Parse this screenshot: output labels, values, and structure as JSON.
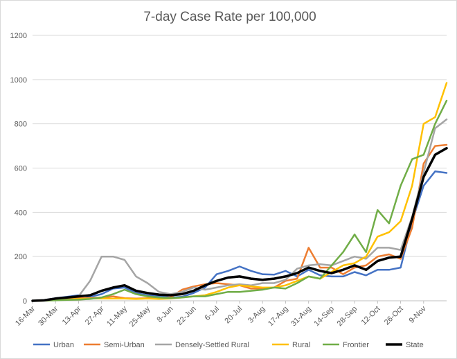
{
  "chart_data": {
    "type": "line",
    "title": "7-day Case Rate per 100,000",
    "xlabel": "",
    "ylabel": "",
    "ylim": [
      0,
      1200
    ],
    "yticks": [
      0,
      200,
      400,
      600,
      800,
      1000,
      1200
    ],
    "grid": true,
    "legend_position": "bottom",
    "x": [
      "16-Mar",
      "23-Mar",
      "30-Mar",
      "6-Apr",
      "13-Apr",
      "20-Apr",
      "27-Apr",
      "4-May",
      "11-May",
      "18-May",
      "25-May",
      "1-Jun",
      "8-Jun",
      "15-Jun",
      "22-Jun",
      "29-Jun",
      "6-Jul",
      "13-Jul",
      "20-Jul",
      "27-Jul",
      "3-Aug",
      "10-Aug",
      "17-Aug",
      "24-Aug",
      "31-Aug",
      "7-Sep",
      "14-Sep",
      "21-Sep",
      "28-Sep",
      "5-Oct",
      "12-Oct",
      "19-Oct",
      "26-Oct",
      "2-Nov",
      "9-Nov",
      "16-Nov",
      "19-Nov"
    ],
    "x_tick_labels": [
      "16-Mar",
      "30-Mar",
      "13-Apr",
      "27-Apr",
      "11-May",
      "25-May",
      "8-Jun",
      "22-Jun",
      "6-Jul",
      "20-Jul",
      "3-Aug",
      "17-Aug",
      "31-Aug",
      "14-Sep",
      "28-Sep",
      "12-Oct",
      "26-Oct",
      "9-Nov"
    ],
    "series": [
      {
        "name": "Urban",
        "color": "#4472c4",
        "width": 2.5,
        "values": [
          0,
          3,
          12,
          18,
          25,
          18,
          30,
          55,
          60,
          35,
          25,
          20,
          15,
          18,
          35,
          60,
          120,
          135,
          155,
          135,
          120,
          118,
          135,
          110,
          140,
          115,
          110,
          110,
          130,
          115,
          140,
          140,
          150,
          360,
          520,
          585,
          578
        ]
      },
      {
        "name": "Semi-Urban",
        "color": "#ed7d31",
        "width": 2.5,
        "values": [
          0,
          1,
          5,
          10,
          12,
          12,
          15,
          20,
          12,
          10,
          12,
          12,
          15,
          50,
          65,
          75,
          80,
          75,
          70,
          55,
          55,
          60,
          90,
          100,
          240,
          150,
          150,
          120,
          150,
          160,
          200,
          210,
          190,
          330,
          620,
          700,
          705
        ]
      },
      {
        "name": "Densely-Settled Rural",
        "color": "#a5a5a5",
        "width": 2.5,
        "values": [
          0,
          2,
          8,
          15,
          20,
          90,
          200,
          200,
          185,
          110,
          80,
          40,
          30,
          40,
          60,
          50,
          60,
          70,
          75,
          70,
          80,
          80,
          95,
          145,
          160,
          165,
          160,
          180,
          200,
          190,
          240,
          240,
          230,
          380,
          580,
          780,
          820
        ]
      },
      {
        "name": "Rural",
        "color": "#ffc000",
        "width": 2.5,
        "values": [
          0,
          1,
          3,
          5,
          8,
          10,
          10,
          10,
          10,
          8,
          10,
          8,
          10,
          15,
          20,
          25,
          40,
          60,
          70,
          65,
          60,
          60,
          70,
          90,
          110,
          100,
          130,
          160,
          170,
          200,
          290,
          310,
          360,
          520,
          800,
          830,
          985
        ]
      },
      {
        "name": "Frontier",
        "color": "#70ad47",
        "width": 2.5,
        "values": [
          0,
          1,
          2,
          4,
          5,
          8,
          15,
          30,
          50,
          30,
          20,
          15,
          12,
          15,
          20,
          20,
          30,
          40,
          40,
          45,
          50,
          60,
          55,
          80,
          110,
          100,
          160,
          220,
          300,
          220,
          410,
          350,
          520,
          640,
          660,
          800,
          905
        ]
      },
      {
        "name": "State",
        "color": "#000000",
        "width": 3.5,
        "values": [
          0,
          2,
          10,
          15,
          20,
          25,
          45,
          60,
          70,
          45,
          35,
          28,
          25,
          30,
          45,
          70,
          90,
          105,
          110,
          100,
          95,
          100,
          110,
          125,
          150,
          135,
          125,
          140,
          160,
          140,
          180,
          195,
          200,
          370,
          560,
          660,
          690
        ]
      }
    ]
  }
}
